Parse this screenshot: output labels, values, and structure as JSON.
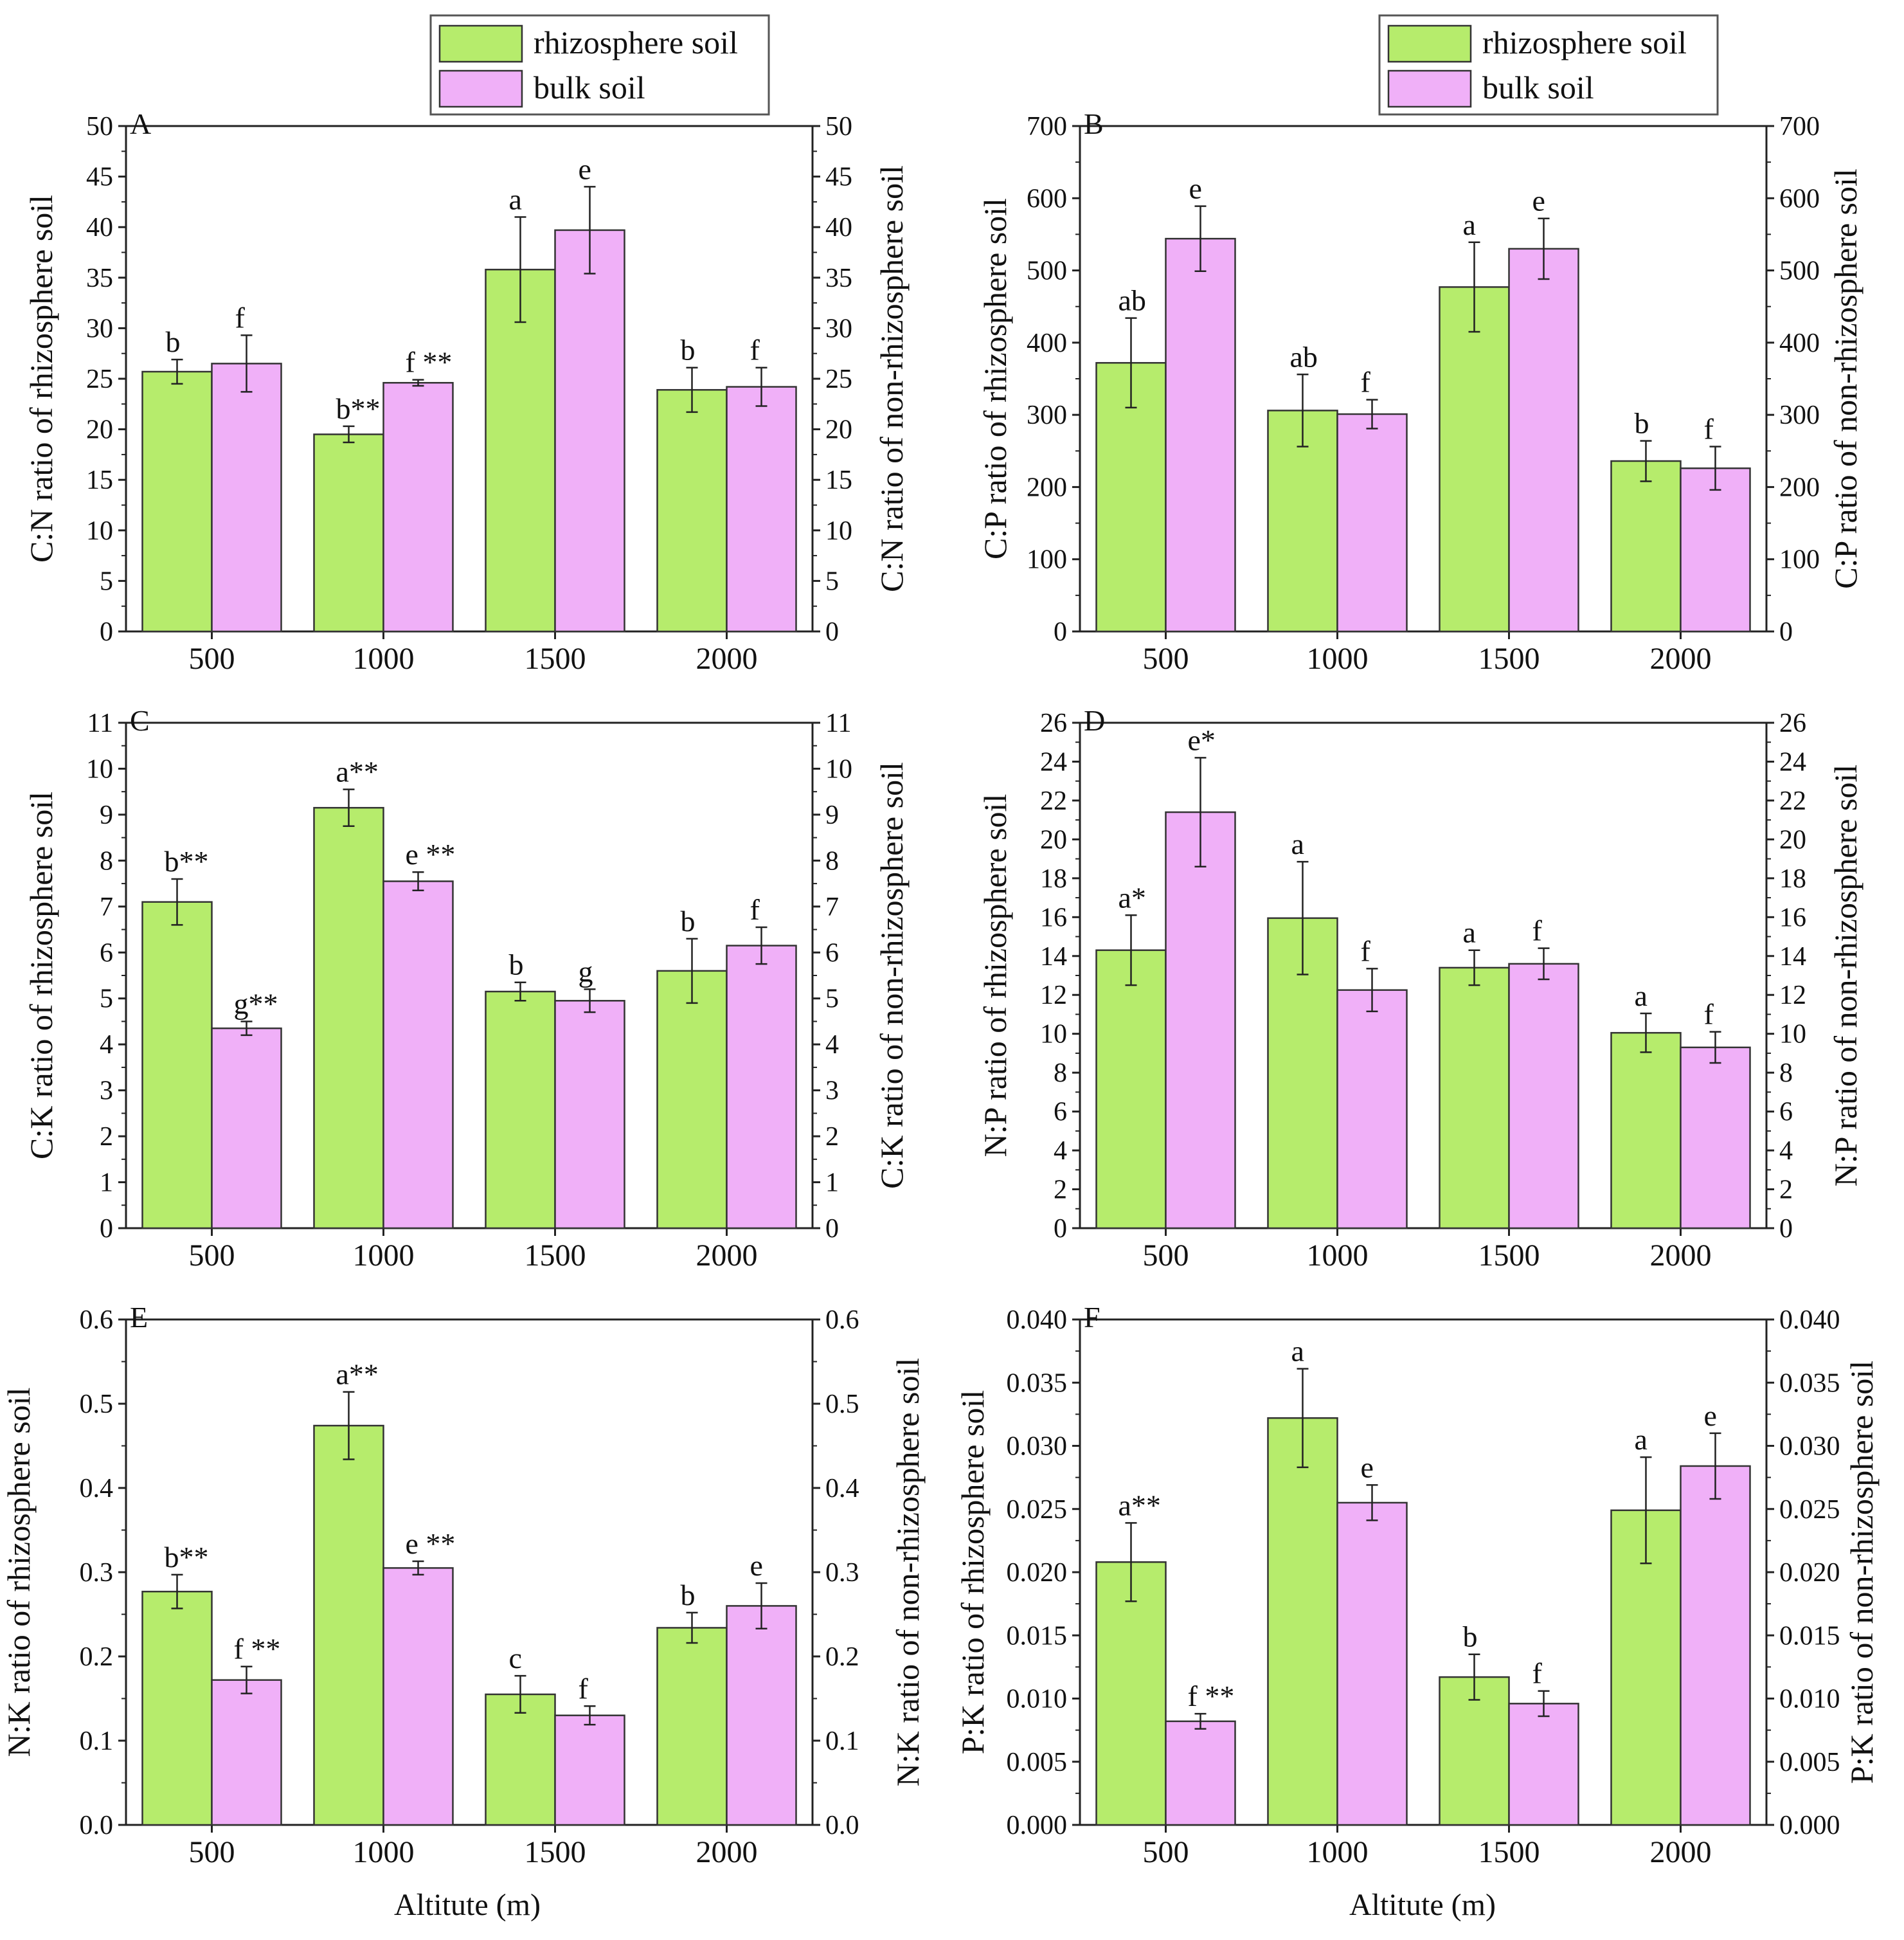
{
  "colors": {
    "rhizosphere": "#b6ec6c",
    "bulk": "#f0b0f8",
    "axis": "#222222",
    "bar_edge": "#333333"
  },
  "legend": {
    "items": [
      {
        "label": "rhizosphere soil",
        "color_key": "rhizosphere"
      },
      {
        "label": "bulk soil",
        "color_key": "bulk"
      }
    ]
  },
  "x_axis_title": "Altitute (m)",
  "chart_data": [
    {
      "id": "A",
      "type": "bar",
      "panel_label": "A",
      "categories": [
        "500",
        "1000",
        "1500",
        "2000"
      ],
      "ylabel": "C:N ratio of rhizosphere soil",
      "ylabel_right": "C:N ratio of non-rhizosphere soil",
      "ylim": [
        0,
        50
      ],
      "yticks": [
        "0",
        "5",
        "10",
        "15",
        "20",
        "25",
        "30",
        "35",
        "40",
        "45",
        "50"
      ],
      "series": [
        {
          "name": "rhizosphere soil",
          "values": [
            25.7,
            19.5,
            35.8,
            23.9
          ],
          "errors": [
            1.2,
            0.8,
            5.2,
            2.2
          ],
          "labels": [
            "b",
            "b**",
            "a",
            "b"
          ]
        },
        {
          "name": "bulk soil",
          "values": [
            26.5,
            24.6,
            39.7,
            24.2
          ],
          "errors": [
            2.8,
            0.3,
            4.3,
            1.9
          ],
          "labels": [
            "f",
            "f **",
            "e",
            "f"
          ]
        }
      ]
    },
    {
      "id": "B",
      "type": "bar",
      "panel_label": "B",
      "categories": [
        "500",
        "1000",
        "1500",
        "2000"
      ],
      "ylabel": "C:P ratio of rhizosphere soil",
      "ylabel_right": "C:P ratio of non-rhizosphere soil",
      "ylim": [
        0,
        700
      ],
      "yticks": [
        "0",
        "100",
        "200",
        "300",
        "400",
        "500",
        "600",
        "700"
      ],
      "series": [
        {
          "name": "rhizosphere soil",
          "values": [
            372,
            306,
            477,
            236
          ],
          "errors": [
            62,
            50,
            62,
            28
          ],
          "labels": [
            "ab",
            "ab",
            "a",
            "b"
          ]
        },
        {
          "name": "bulk soil",
          "values": [
            544,
            301,
            530,
            226
          ],
          "errors": [
            45,
            20,
            42,
            30
          ],
          "labels": [
            "e",
            "f",
            "e",
            "f"
          ]
        }
      ]
    },
    {
      "id": "C",
      "type": "bar",
      "panel_label": "C",
      "categories": [
        "500",
        "1000",
        "1500",
        "2000"
      ],
      "ylabel": "C:K ratio of rhizosphere soil",
      "ylabel_right": "C:K ratio of non-rhizosphere soil",
      "ylim": [
        0,
        11
      ],
      "yticks": [
        "0",
        "1",
        "2",
        "3",
        "4",
        "5",
        "6",
        "7",
        "8",
        "9",
        "10",
        "11"
      ],
      "series": [
        {
          "name": "rhizosphere soil",
          "values": [
            7.1,
            9.15,
            5.15,
            5.6
          ],
          "errors": [
            0.5,
            0.4,
            0.2,
            0.7
          ],
          "labels": [
            "b**",
            "a**",
            "b",
            "b"
          ]
        },
        {
          "name": "bulk soil",
          "values": [
            4.35,
            7.55,
            4.95,
            6.15
          ],
          "errors": [
            0.15,
            0.2,
            0.25,
            0.4
          ],
          "labels": [
            "g**",
            "e **",
            "g",
            "f"
          ]
        }
      ]
    },
    {
      "id": "D",
      "type": "bar",
      "panel_label": "D",
      "categories": [
        "500",
        "1000",
        "1500",
        "2000"
      ],
      "ylabel": "N:P ratio of rhizosphere soil",
      "ylabel_right": "N:P ratio of non-rhizosphere soil",
      "ylim": [
        0,
        26
      ],
      "yticks": [
        "0",
        "2",
        "4",
        "6",
        "8",
        "10",
        "12",
        "14",
        "16",
        "18",
        "20",
        "22",
        "24",
        "26"
      ],
      "series": [
        {
          "name": "rhizosphere soil",
          "values": [
            14.3,
            15.95,
            13.4,
            10.05
          ],
          "errors": [
            1.8,
            2.9,
            0.9,
            1.0
          ],
          "labels": [
            "a*",
            "a",
            "a",
            "a"
          ]
        },
        {
          "name": "bulk soil",
          "values": [
            21.4,
            12.25,
            13.6,
            9.3
          ],
          "errors": [
            2.8,
            1.1,
            0.8,
            0.8
          ],
          "labels": [
            "e*",
            "f",
            "f",
            "f"
          ]
        }
      ]
    },
    {
      "id": "E",
      "type": "bar",
      "panel_label": "E",
      "categories": [
        "500",
        "1000",
        "1500",
        "2000"
      ],
      "ylabel": "N:K ratio of rhizosphere soil",
      "ylabel_right": "N:K ratio of non-rhizosphere soil",
      "ylim": [
        0,
        0.6
      ],
      "yticks": [
        "0.0",
        "0.1",
        "0.2",
        "0.3",
        "0.4",
        "0.5",
        "0.6"
      ],
      "series": [
        {
          "name": "rhizosphere soil",
          "values": [
            0.277,
            0.474,
            0.155,
            0.234
          ],
          "errors": [
            0.02,
            0.04,
            0.022,
            0.018
          ],
          "labels": [
            "b**",
            "a**",
            "c",
            "b"
          ]
        },
        {
          "name": "bulk soil",
          "values": [
            0.172,
            0.305,
            0.13,
            0.26
          ],
          "errors": [
            0.016,
            0.008,
            0.011,
            0.027
          ],
          "labels": [
            "f **",
            "e **",
            "f",
            "e"
          ]
        }
      ]
    },
    {
      "id": "F",
      "type": "bar",
      "panel_label": "F",
      "categories": [
        "500",
        "1000",
        "1500",
        "2000"
      ],
      "ylabel": "P:K ratio of rhizosphere soil",
      "ylabel_right": "P:K ratio of non-rhizosphere soil",
      "ylim": [
        0,
        0.04
      ],
      "yticks": [
        "0.000",
        "0.005",
        "0.010",
        "0.015",
        "0.020",
        "0.025",
        "0.030",
        "0.035",
        "0.040"
      ],
      "series": [
        {
          "name": "rhizosphere soil",
          "values": [
            0.0208,
            0.0322,
            0.0117,
            0.0249
          ],
          "errors": [
            0.0031,
            0.0039,
            0.0018,
            0.0042
          ],
          "labels": [
            "a**",
            "a",
            "b",
            "a"
          ]
        },
        {
          "name": "bulk soil",
          "values": [
            0.0082,
            0.0255,
            0.0096,
            0.0284
          ],
          "errors": [
            0.0006,
            0.0014,
            0.001,
            0.0026
          ],
          "labels": [
            "f **",
            "e",
            "f",
            "e"
          ]
        }
      ]
    }
  ]
}
